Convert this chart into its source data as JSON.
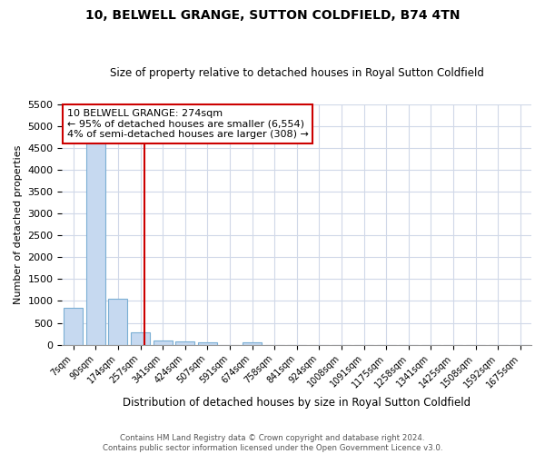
{
  "title1": "10, BELWELL GRANGE, SUTTON COLDFIELD, B74 4TN",
  "title2": "Size of property relative to detached houses in Royal Sutton Coldfield",
  "xlabel": "Distribution of detached houses by size in Royal Sutton Coldfield",
  "ylabel": "Number of detached properties",
  "footnote": "Contains HM Land Registry data © Crown copyright and database right 2024.\nContains public sector information licensed under the Open Government Licence v3.0.",
  "bar_labels": [
    "7sqm",
    "90sqm",
    "174sqm",
    "257sqm",
    "341sqm",
    "424sqm",
    "507sqm",
    "591sqm",
    "674sqm",
    "758sqm",
    "841sqm",
    "924sqm",
    "1008sqm",
    "1091sqm",
    "1175sqm",
    "1258sqm",
    "1341sqm",
    "1425sqm",
    "1508sqm",
    "1592sqm",
    "1675sqm"
  ],
  "bar_values": [
    850,
    4700,
    1050,
    290,
    95,
    70,
    55,
    0,
    60,
    0,
    0,
    0,
    0,
    0,
    0,
    0,
    0,
    0,
    0,
    0,
    0
  ],
  "bar_color": "#c6d9f0",
  "bar_edge_color": "#7bafd4",
  "ylim": [
    0,
    5500
  ],
  "yticks": [
    0,
    500,
    1000,
    1500,
    2000,
    2500,
    3000,
    3500,
    4000,
    4500,
    5000,
    5500
  ],
  "property_label": "10 BELWELL GRANGE: 274sqm",
  "annotation_line1": "← 95% of detached houses are smaller (6,554)",
  "annotation_line2": "4% of semi-detached houses are larger (308) →",
  "vline_color": "#cc0000",
  "annotation_box_color": "#cc0000",
  "background_color": "#ffffff",
  "grid_color": "#d0d8e8",
  "vline_x_index": 3,
  "vline_x_offset": 0.202
}
